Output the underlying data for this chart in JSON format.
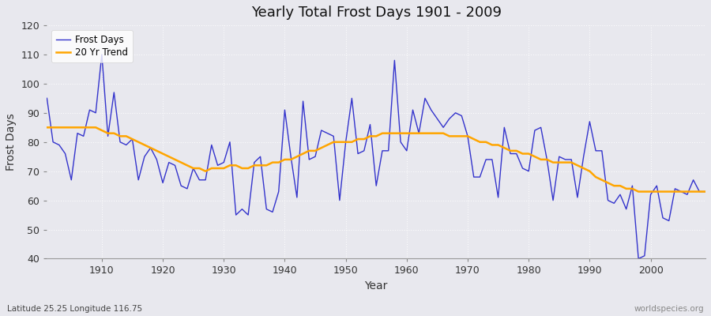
{
  "title": "Yearly Total Frost Days 1901 - 2009",
  "xlabel": "Year",
  "ylabel": "Frost Days",
  "subtitle": "Latitude 25.25 Longitude 116.75",
  "watermark": "worldspecies.org",
  "xlim": [
    1901,
    2009
  ],
  "ylim": [
    40,
    120
  ],
  "yticks": [
    40,
    50,
    60,
    70,
    80,
    90,
    100,
    110,
    120
  ],
  "xticks": [
    1910,
    1920,
    1930,
    1940,
    1950,
    1960,
    1970,
    1980,
    1990,
    2000
  ],
  "line_color": "#3333cc",
  "trend_color": "#ffa500",
  "bg_color": "#e8e8ee",
  "frost_days": {
    "1901": 95,
    "1902": 80,
    "1903": 79,
    "1904": 76,
    "1905": 67,
    "1906": 83,
    "1907": 82,
    "1908": 91,
    "1909": 90,
    "1910": 110,
    "1911": 82,
    "1912": 97,
    "1913": 80,
    "1914": 79,
    "1915": 81,
    "1916": 67,
    "1917": 75,
    "1918": 78,
    "1919": 74,
    "1920": 66,
    "1921": 73,
    "1922": 72,
    "1923": 65,
    "1924": 64,
    "1925": 71,
    "1926": 67,
    "1927": 67,
    "1928": 79,
    "1929": 72,
    "1930": 73,
    "1931": 80,
    "1932": 55,
    "1933": 57,
    "1934": 55,
    "1935": 73,
    "1936": 75,
    "1937": 57,
    "1938": 56,
    "1939": 63,
    "1940": 91,
    "1941": 75,
    "1942": 61,
    "1943": 94,
    "1944": 74,
    "1945": 75,
    "1946": 84,
    "1947": 83,
    "1948": 82,
    "1949": 60,
    "1950": 80,
    "1951": 95,
    "1952": 76,
    "1953": 77,
    "1954": 86,
    "1955": 65,
    "1956": 77,
    "1957": 77,
    "1958": 108,
    "1959": 80,
    "1960": 77,
    "1961": 91,
    "1962": 83,
    "1963": 95,
    "1964": 91,
    "1965": 88,
    "1966": 85,
    "1967": 88,
    "1968": 90,
    "1969": 89,
    "1970": 82,
    "1971": 68,
    "1972": 68,
    "1973": 74,
    "1974": 74,
    "1975": 61,
    "1976": 85,
    "1977": 76,
    "1978": 76,
    "1979": 71,
    "1980": 70,
    "1981": 84,
    "1982": 85,
    "1983": 74,
    "1984": 60,
    "1985": 75,
    "1986": 74,
    "1987": 74,
    "1988": 61,
    "1989": 75,
    "1990": 87,
    "1991": 77,
    "1992": 77,
    "1993": 60,
    "1994": 59,
    "1995": 62,
    "1996": 57,
    "1997": 65,
    "1998": 40,
    "1999": 41,
    "2000": 62,
    "2001": 65,
    "2002": 54,
    "2003": 53,
    "2004": 64,
    "2005": 63,
    "2006": 62,
    "2007": 67,
    "2008": 63,
    "2009": 63
  },
  "trend_days": {
    "1901": 85,
    "1902": 85,
    "1903": 85,
    "1904": 85,
    "1905": 85,
    "1906": 85,
    "1907": 85,
    "1908": 85,
    "1909": 85,
    "1910": 84,
    "1911": 83,
    "1912": 83,
    "1913": 82,
    "1914": 82,
    "1915": 81,
    "1916": 80,
    "1917": 79,
    "1918": 78,
    "1919": 77,
    "1920": 76,
    "1921": 75,
    "1922": 74,
    "1923": 73,
    "1924": 72,
    "1925": 71,
    "1926": 71,
    "1927": 70,
    "1928": 71,
    "1929": 71,
    "1930": 71,
    "1931": 72,
    "1932": 72,
    "1933": 71,
    "1934": 71,
    "1935": 72,
    "1936": 72,
    "1937": 72,
    "1938": 73,
    "1939": 73,
    "1940": 74,
    "1941": 74,
    "1942": 75,
    "1943": 76,
    "1944": 77,
    "1945": 77,
    "1946": 78,
    "1947": 79,
    "1948": 80,
    "1949": 80,
    "1950": 80,
    "1951": 80,
    "1952": 81,
    "1953": 81,
    "1954": 82,
    "1955": 82,
    "1956": 83,
    "1957": 83,
    "1958": 83,
    "1959": 83,
    "1960": 83,
    "1961": 83,
    "1962": 83,
    "1963": 83,
    "1964": 83,
    "1965": 83,
    "1966": 83,
    "1967": 82,
    "1968": 82,
    "1969": 82,
    "1970": 82,
    "1971": 81,
    "1972": 80,
    "1973": 80,
    "1974": 79,
    "1975": 79,
    "1976": 78,
    "1977": 77,
    "1978": 77,
    "1979": 76,
    "1980": 76,
    "1981": 75,
    "1982": 74,
    "1983": 74,
    "1984": 73,
    "1985": 73,
    "1986": 73,
    "1987": 73,
    "1988": 72,
    "1989": 71,
    "1990": 70,
    "1991": 68,
    "1992": 67,
    "1993": 66,
    "1994": 65,
    "1995": 65,
    "1996": 64,
    "1997": 64,
    "1998": 63,
    "1999": 63,
    "2000": 63,
    "2001": 63,
    "2002": 63,
    "2003": 63,
    "2004": 63,
    "2005": 63,
    "2006": 63,
    "2007": 63,
    "2008": 63,
    "2009": 63
  },
  "figsize": [
    9.0,
    4.0
  ],
  "dpi": 100
}
